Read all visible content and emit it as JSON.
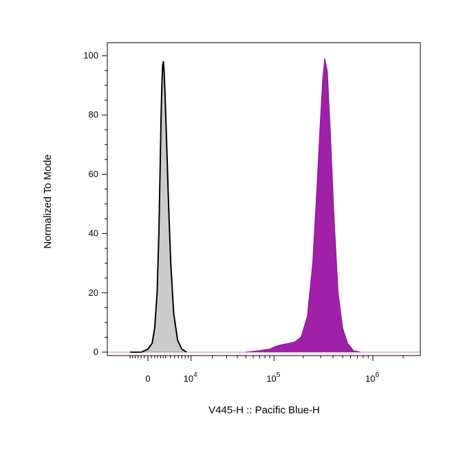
{
  "chart_data": {
    "type": "area",
    "xlabel": "V445-H :: Pacific Blue-H",
    "ylabel": "Normalized To Mode",
    "x_scale": "biexponential",
    "xlim": [
      -3000,
      3000000
    ],
    "ylim": [
      0,
      100
    ],
    "y_ticks": [
      0,
      20,
      40,
      60,
      80,
      100
    ],
    "x_ticks": [
      {
        "value": 0,
        "label": "0"
      },
      {
        "value": 10000,
        "base": "10",
        "exp": "4"
      },
      {
        "value": 100000,
        "base": "10",
        "exp": "5"
      },
      {
        "value": 1000000,
        "base": "10",
        "exp": "6"
      }
    ],
    "grid": false,
    "series": [
      {
        "color": "#cccccc",
        "edge_color": "#000000",
        "points": [
          [
            -3000,
            0
          ],
          [
            -1000,
            0
          ],
          [
            0,
            1
          ],
          [
            600,
            3
          ],
          [
            1000,
            8
          ],
          [
            1400,
            20
          ],
          [
            1700,
            40
          ],
          [
            1900,
            60
          ],
          [
            2100,
            80
          ],
          [
            2250,
            90
          ],
          [
            2400,
            97
          ],
          [
            2550,
            98
          ],
          [
            2700,
            94
          ],
          [
            2900,
            85
          ],
          [
            3200,
            70
          ],
          [
            3600,
            50
          ],
          [
            4100,
            30
          ],
          [
            4800,
            13
          ],
          [
            5800,
            4
          ],
          [
            7000,
            1
          ],
          [
            8500,
            0
          ]
        ]
      },
      {
        "color": "#a020a8",
        "edge_color": "#8e1897",
        "points": [
          [
            50000,
            0
          ],
          [
            70000,
            0.5
          ],
          [
            90000,
            1
          ],
          [
            105000,
            2
          ],
          [
            120000,
            2.5
          ],
          [
            145000,
            3
          ],
          [
            165000,
            3.5
          ],
          [
            190000,
            5
          ],
          [
            220000,
            12
          ],
          [
            250000,
            30
          ],
          [
            275000,
            55
          ],
          [
            295000,
            75
          ],
          [
            315000,
            92
          ],
          [
            330000,
            99
          ],
          [
            350000,
            95
          ],
          [
            375000,
            75
          ],
          [
            410000,
            45
          ],
          [
            450000,
            20
          ],
          [
            500000,
            8
          ],
          [
            560000,
            3
          ],
          [
            640000,
            0.5
          ],
          [
            750000,
            0
          ]
        ]
      }
    ]
  }
}
